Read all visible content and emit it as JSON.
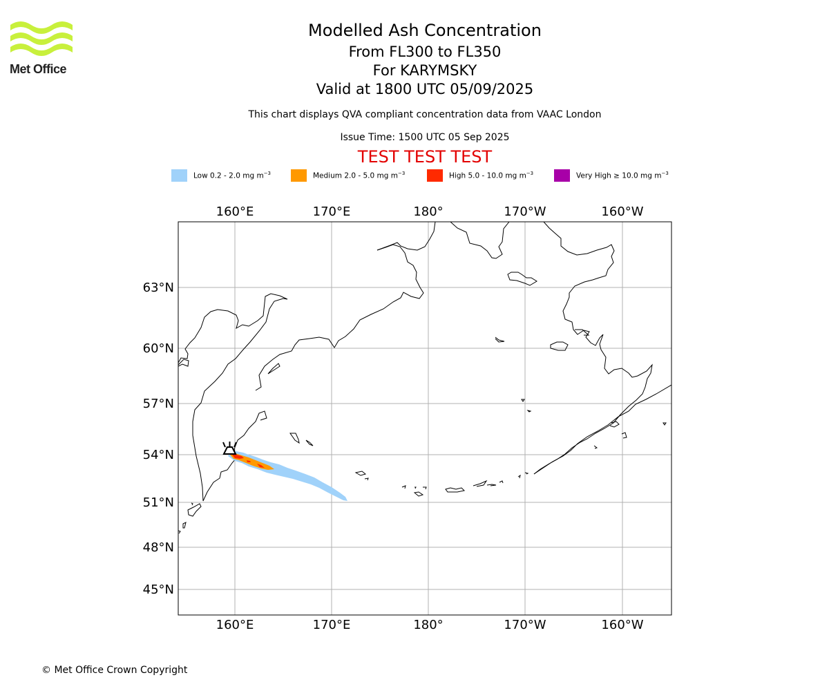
{
  "logo": {
    "text": "Met Office",
    "color": "#c8f03c"
  },
  "header": {
    "title": "Modelled Ash Concentration",
    "levels": "From FL300 to FL350",
    "volcano": "For KARYMSKY",
    "valid": "Valid at 1800 UTC 05/09/2025",
    "subtitle": "This chart displays QVA compliant concentration data from VAAC London",
    "issue_time": "Issue Time: 1500 UTC 05 Sep 2025",
    "test_banner": "TEST TEST TEST",
    "test_color": "#e30000"
  },
  "legend": [
    {
      "label": "Low 0.2 - 2.0 mg m",
      "unit_exp": "−3",
      "color": "#a0d2fa"
    },
    {
      "label": "Medium 2.0 - 5.0 mg m",
      "unit_exp": "−3",
      "color": "#ff9900"
    },
    {
      "label": "High 5.0 - 10.0 mg m",
      "unit_exp": "−3",
      "color": "#ff2a00"
    },
    {
      "label": "Very High  ≥  10.0 mg m",
      "unit_exp": "−3",
      "color": "#a800a8"
    }
  ],
  "map": {
    "lon_labels": [
      "160°E",
      "170°E",
      "180°",
      "170°W",
      "160°W"
    ],
    "lat_labels": [
      "63°N",
      "60°N",
      "57°N",
      "54°N",
      "51°N",
      "48°N",
      "45°N"
    ],
    "lon_values": [
      160,
      170,
      180,
      -170,
      -160
    ],
    "lat_values": [
      63,
      60,
      57,
      54,
      51,
      48,
      45
    ],
    "volcano_symbol": "volcano-icon"
  },
  "footer": {
    "copyright": "© Met Office Crown Copyright"
  }
}
